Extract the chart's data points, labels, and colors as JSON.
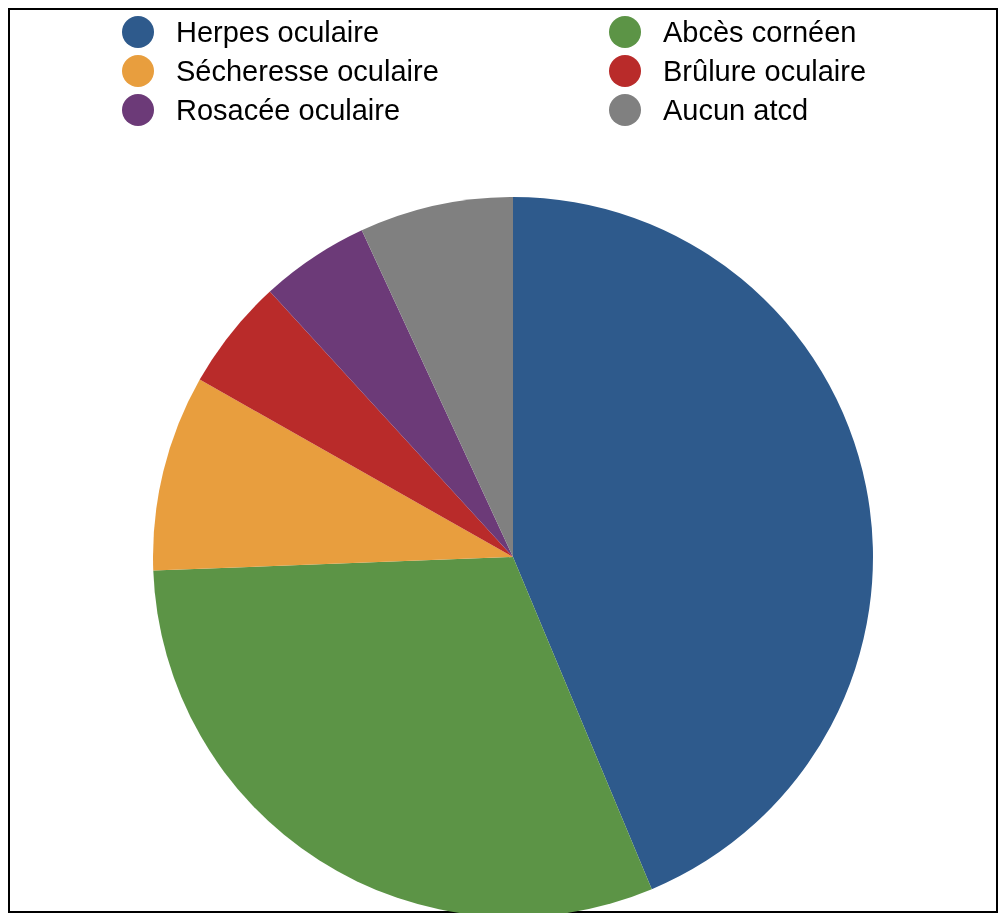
{
  "chart_data": {
    "type": "pie",
    "categories": [
      "Herpes oculaire",
      "Abcès cornéen",
      "Sécheresse oculaire",
      "Brûlure oculaire",
      "Rosacée oculaire",
      "Aucun atcd"
    ],
    "values": [
      43.7,
      30.7,
      8.8,
      5.0,
      4.9,
      6.9
    ],
    "colors": [
      "#2e5a8c",
      "#5c9446",
      "#e89e3e",
      "#b92b2a",
      "#6c3a78",
      "#808080"
    ],
    "legend": "top"
  }
}
